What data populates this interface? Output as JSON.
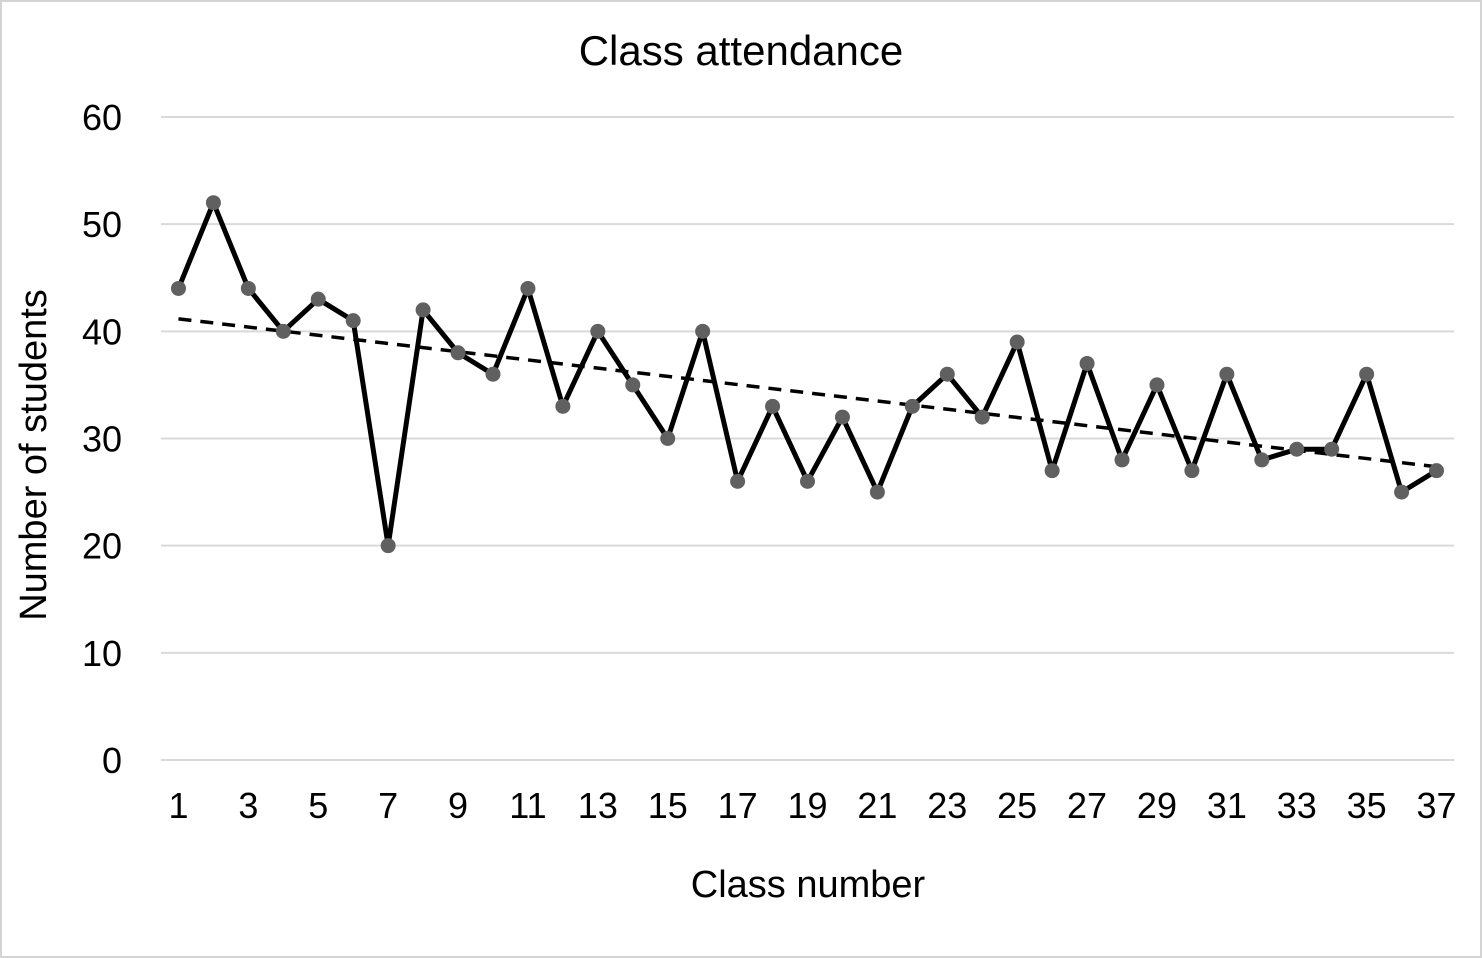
{
  "chart_data": {
    "type": "line",
    "title": "Class attendance",
    "xlabel": "Class number",
    "ylabel": "Number of students",
    "x": [
      1,
      2,
      3,
      4,
      5,
      6,
      7,
      8,
      9,
      10,
      11,
      12,
      13,
      14,
      15,
      16,
      17,
      18,
      19,
      20,
      21,
      22,
      23,
      24,
      25,
      26,
      27,
      28,
      29,
      30,
      31,
      32,
      33,
      34,
      35,
      36,
      37
    ],
    "series": [
      {
        "values": [
          44,
          52,
          44,
          40,
          43,
          41,
          20,
          42,
          38,
          36,
          44,
          33,
          40,
          35,
          30,
          40,
          26,
          33,
          26,
          32,
          25,
          33,
          36,
          32,
          39,
          27,
          37,
          28,
          35,
          27,
          36,
          28,
          29,
          29,
          36,
          25,
          27
        ]
      }
    ],
    "trendline": {
      "type": "linear",
      "style": "dashed",
      "slope": -0.3834,
      "intercept": 41.55
    },
    "ylim": [
      0,
      60
    ],
    "yticks": [
      0,
      10,
      20,
      30,
      40,
      50,
      60
    ],
    "xticks": [
      1,
      3,
      5,
      7,
      9,
      11,
      13,
      15,
      17,
      19,
      21,
      23,
      25,
      27,
      29,
      31,
      33,
      35,
      37
    ],
    "grid": true,
    "legend": "none",
    "colors": {
      "line": "#000000",
      "marker": "#606060",
      "trendline": "#000000",
      "gridline": "#d9d9d9",
      "text": "#000000",
      "page_border": "#d4d4d4",
      "background": "#ffffff"
    }
  }
}
